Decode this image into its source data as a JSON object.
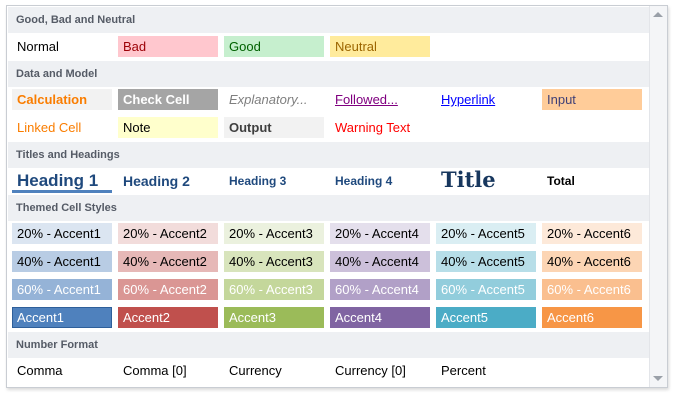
{
  "sections": {
    "good_bad_neutral": "Good, Bad and Neutral",
    "data_model": "Data and Model",
    "titles_headings": "Titles and Headings",
    "themed": "Themed Cell Styles",
    "number_format": "Number Format"
  },
  "good_bad_neutral": {
    "normal": "Normal",
    "bad": "Bad",
    "good": "Good",
    "neutral": "Neutral"
  },
  "data_model": {
    "calculation": "Calculation",
    "check_cell": "Check Cell",
    "explanatory": "Explanatory...",
    "followed": "Followed...",
    "hyperlink": "Hyperlink",
    "input": "Input",
    "linked_cell": "Linked Cell",
    "note": "Note",
    "output": "Output",
    "warning_text": "Warning Text"
  },
  "titles_headings": {
    "heading1": "Heading 1",
    "heading2": "Heading 2",
    "heading3": "Heading 3",
    "heading4": "Heading 4",
    "title": "Title",
    "total": "Total"
  },
  "themed": {
    "r20": [
      "20% - Accent1",
      "20% - Accent2",
      "20% - Accent3",
      "20% - Accent4",
      "20% - Accent5",
      "20% - Accent6"
    ],
    "r40": [
      "40% - Accent1",
      "40% - Accent2",
      "40% - Accent3",
      "40% - Accent4",
      "40% - Accent5",
      "40% - Accent6"
    ],
    "r60": [
      "60% - Accent1",
      "60% - Accent2",
      "60% - Accent3",
      "60% - Accent4",
      "60% - Accent5",
      "60% - Accent6"
    ],
    "acc": [
      "Accent1",
      "Accent2",
      "Accent3",
      "Accent4",
      "Accent5",
      "Accent6"
    ]
  },
  "number_format": {
    "comma": "Comma",
    "comma0": "Comma [0]",
    "currency": "Currency",
    "currency0": "Currency [0]",
    "percent": "Percent"
  },
  "colors": {
    "accent1": "#4f81bd",
    "accent2": "#c0504d",
    "accent3": "#9bbb59",
    "accent4": "#8064a2",
    "accent5": "#4bacc6",
    "accent6": "#f79646",
    "bad_bg": "#ffc7ce",
    "good_bg": "#c6efce",
    "neutral_bg": "#ffeb9c"
  }
}
